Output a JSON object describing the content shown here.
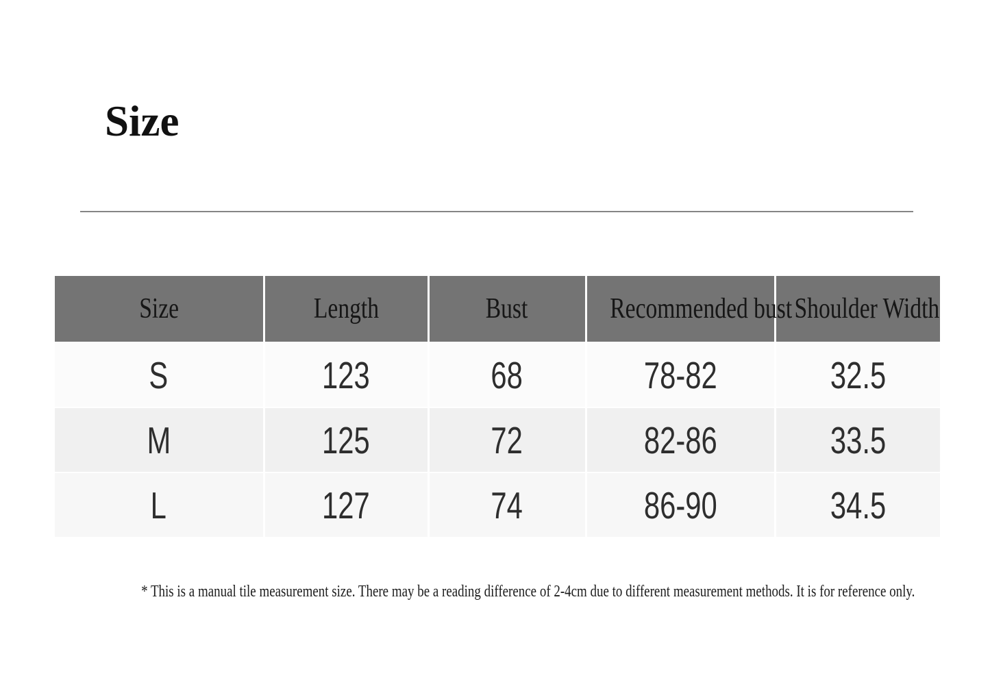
{
  "colors": {
    "header_bg": "#747474",
    "header_text": "#161616",
    "data_text": "#2e2e2e",
    "row_s_bg": "#fbfbfb",
    "row_m_bg": "#f0f0f0",
    "row_l_bg": "#f7f7f7",
    "title_rule": "#858585",
    "title_text": "#111111",
    "note_text": "#1d1d1d",
    "cell_divider": "#ffffff",
    "page_bg": "#ffffff"
  },
  "chart_data": {
    "type": "table",
    "title": "Size",
    "columns": [
      "Size",
      "Length",
      "Bust",
      "Recommended bust",
      "Shoulder Width"
    ],
    "rows": [
      [
        "S",
        123,
        68,
        "78-82",
        32.5
      ],
      [
        "M",
        125,
        72,
        "82-86",
        33.5
      ],
      [
        "L",
        127,
        74,
        "86-90",
        34.5
      ]
    ],
    "footnote": "* This is a manual tile measurement size. There may be a reading difference of 2-4cm due to different measurement methods. It is for reference only."
  }
}
